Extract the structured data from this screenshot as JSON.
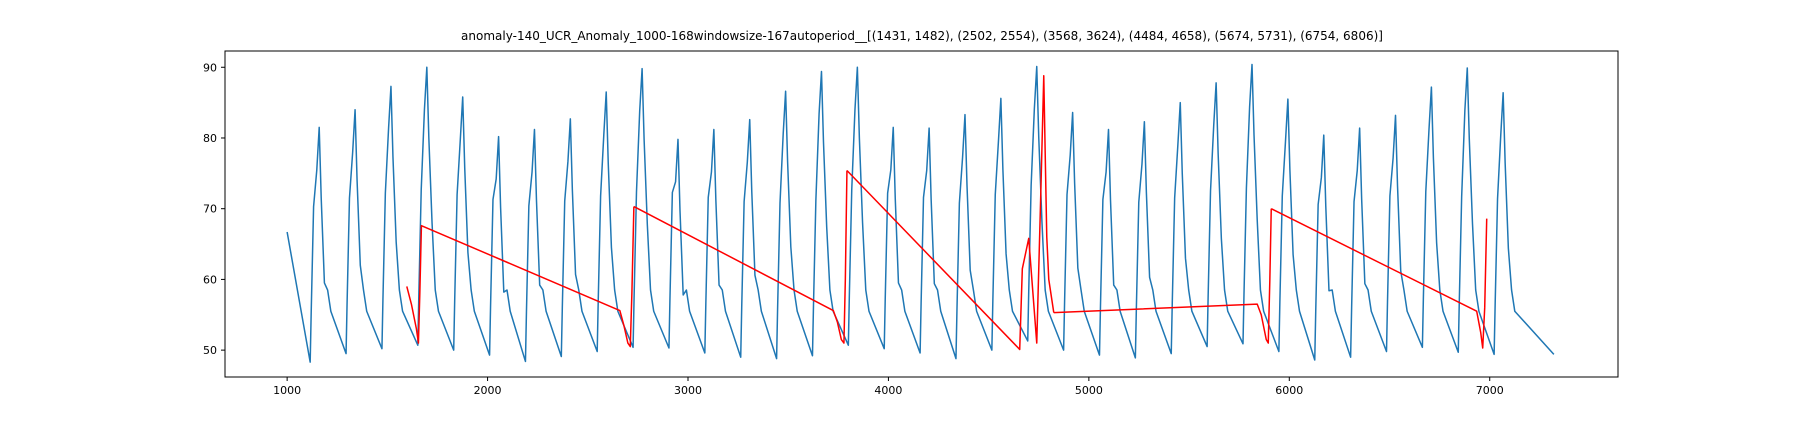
{
  "chart_data": {
    "type": "line",
    "title": "anomaly-140_UCR_Anomaly_1000-168windowsize-167autoperiod__[(1431, 1482), (2502, 2554), (3568, 3624), (4484, 4658), (5674, 5731), (6754, 6806)]",
    "xlabel": "",
    "ylabel": "",
    "xlim": [
      690,
      7640
    ],
    "ylim": [
      46.2,
      92.3
    ],
    "x_ticks": [
      1000,
      2000,
      3000,
      4000,
      5000,
      6000,
      7000
    ],
    "y_ticks": [
      50,
      60,
      70,
      80,
      90
    ],
    "grid": false,
    "legend": "none",
    "colors": {
      "signal": "#1f77b4",
      "anomaly": "#ff0000"
    },
    "signal": {
      "x_start": 1000,
      "x_end": 7320,
      "period": 179,
      "first_peak_x": 1160,
      "start_value": 66.7,
      "end_value": 49.4,
      "peaks": [
        81.5,
        84.0,
        87.3,
        90.0,
        85.8,
        80.2,
        81.2,
        82.7,
        86.5,
        89.8,
        79.8,
        81.2,
        82.6,
        86.6,
        89.4,
        90.0,
        81.5,
        81.4,
        83.3,
        85.6,
        90.1,
        83.6,
        81.2,
        82.3,
        85.0,
        87.8,
        90.4,
        85.5,
        80.4,
        81.4,
        83.2,
        87.2,
        89.9,
        86.4
      ],
      "troughs": [
        48.3,
        49.5,
        50.2,
        50.7,
        50.0,
        49.3,
        48.4,
        49.1,
        49.8,
        50.4,
        50.3,
        49.6,
        49.0,
        48.8,
        49.2,
        50.7,
        50.2,
        49.6,
        48.8,
        50.0,
        51.3,
        50.0,
        49.3,
        48.9,
        49.5,
        50.5,
        50.9,
        49.8,
        48.6,
        49.0,
        49.8,
        50.4,
        49.7,
        49.4
      ]
    },
    "anomaly_series": {
      "name": "",
      "segments": [
        {
          "x": [
            1597,
            1620,
            1645,
            1655,
            1662,
            1670,
            2660,
            2680,
            2700,
            2712,
            2720,
            2730
          ],
          "y": [
            59.0,
            56.5,
            53.0,
            51.0,
            58.0,
            67.6,
            55.6,
            53.5,
            51.0,
            50.5,
            58.0,
            70.3
          ]
        },
        {
          "x": [
            2730,
            3725,
            3745,
            3765,
            3778,
            3785,
            3793
          ],
          "y": [
            70.3,
            55.6,
            54.0,
            51.5,
            51.0,
            60.0,
            75.4
          ]
        },
        {
          "x": [
            3793,
            4655,
            4668,
            4700,
            4740,
            4760,
            4775,
            4782,
            4790,
            4800,
            4825
          ],
          "y": [
            75.4,
            50.1,
            61.5,
            65.8,
            51.0,
            72.0,
            88.8,
            78.0,
            66.0,
            60.0,
            55.3
          ]
        },
        {
          "x": [
            4825,
            5840,
            5860,
            5885,
            5895,
            5903,
            5910
          ],
          "y": [
            55.3,
            56.5,
            55.0,
            51.5,
            51.0,
            60.0,
            70.0
          ]
        },
        {
          "x": [
            5910,
            6935,
            6955,
            6965,
            6975,
            6985
          ],
          "y": [
            70.0,
            55.5,
            52.5,
            50.3,
            56.0,
            68.6
          ]
        }
      ]
    }
  }
}
